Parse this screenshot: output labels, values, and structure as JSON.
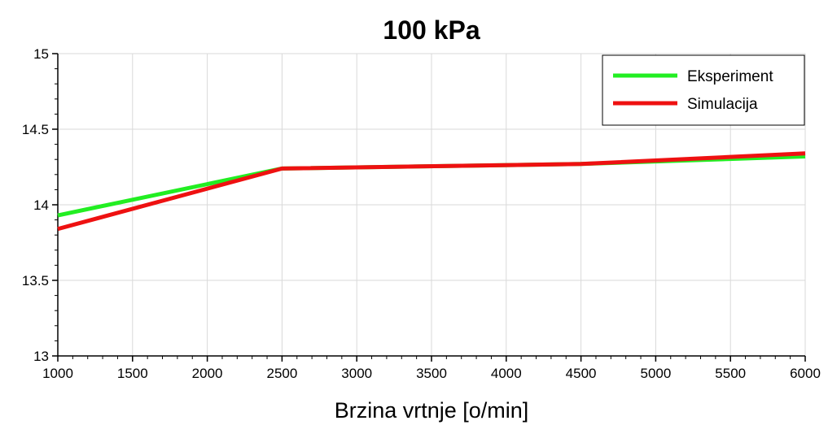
{
  "chart_data": {
    "type": "line",
    "title": "100 kPa",
    "xlabel": "Brzina vrtnje [o/min]",
    "ylabel": "",
    "xlim": [
      1000,
      6000
    ],
    "ylim": [
      13,
      15
    ],
    "xticks": [
      1000,
      1500,
      2000,
      2500,
      3000,
      3500,
      4000,
      4500,
      5000,
      5500,
      6000
    ],
    "yticks": [
      13,
      13.5,
      14,
      14.5,
      15
    ],
    "ytick_labels": [
      "13",
      "13.5",
      "14",
      "14.5",
      "15"
    ],
    "xtick_labels": [
      "1000",
      "1500",
      "2000",
      "2500",
      "3000",
      "3500",
      "4000",
      "4500",
      "5000",
      "5500",
      "6000"
    ],
    "grid": true,
    "legend_position": "top-right",
    "series": [
      {
        "name": "Eksperiment",
        "color": "#22ee22",
        "x": [
          1000,
          2500,
          4500,
          6000
        ],
        "y": [
          13.93,
          14.24,
          14.27,
          14.32
        ]
      },
      {
        "name": "Simulacija",
        "color": "#ee1111",
        "x": [
          1000,
          2500,
          4500,
          6000
        ],
        "y": [
          13.84,
          14.24,
          14.27,
          14.34
        ]
      }
    ]
  }
}
